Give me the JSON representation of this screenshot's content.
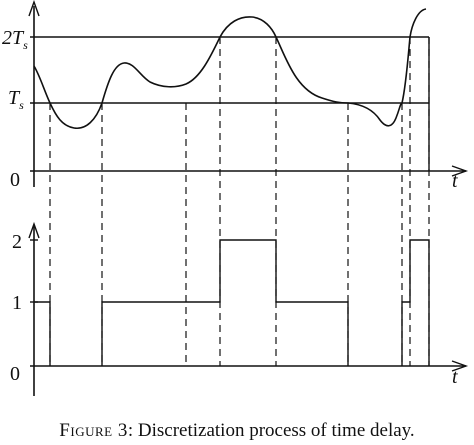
{
  "top_plot": {
    "y_label_2ts_main": "2T",
    "y_label_2ts_sub": "s",
    "y_label_ts_main": "T",
    "y_label_ts_sub": "s",
    "y_label_zero": "0",
    "x_label": "t"
  },
  "bottom_plot": {
    "y_tick_2": "2",
    "y_tick_1": "1",
    "y_tick_0": "0",
    "x_label": "t"
  },
  "caption": {
    "prefix": "Figure 3",
    "text": ": Discretization process of time delay."
  }
}
